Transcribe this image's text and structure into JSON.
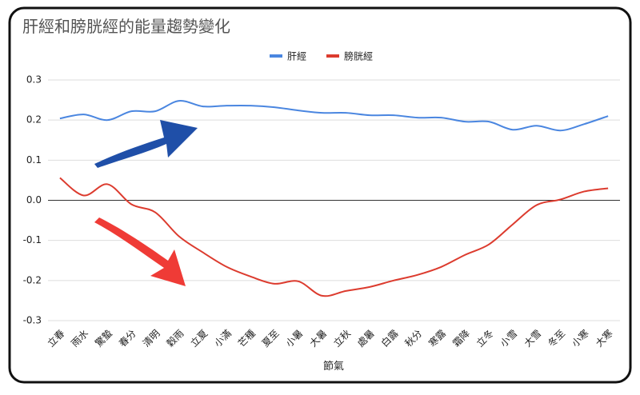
{
  "chart_data": {
    "type": "line",
    "title": "肝經和膀胱經的能量趨勢變化",
    "x_label": "節氣",
    "categories": [
      "立春",
      "雨水",
      "驚蟄",
      "春分",
      "清明",
      "穀雨",
      "立夏",
      "小滿",
      "芒種",
      "夏至",
      "小暑",
      "大暑",
      "立秋",
      "處暑",
      "白露",
      "秋分",
      "寒露",
      "霜降",
      "立冬",
      "小雪",
      "大雪",
      "冬至",
      "小寒",
      "大寒"
    ],
    "series": [
      {
        "name": "肝經",
        "color": "#4a86e0",
        "values": [
          0.204,
          0.214,
          0.2,
          0.222,
          0.222,
          0.248,
          0.234,
          0.236,
          0.236,
          0.232,
          0.224,
          0.218,
          0.218,
          0.212,
          0.212,
          0.206,
          0.206,
          0.196,
          0.196,
          0.176,
          0.186,
          0.174,
          0.19,
          0.21
        ]
      },
      {
        "name": "膀胱經",
        "color": "#dc3b2e",
        "values": [
          0.056,
          0.012,
          0.04,
          -0.01,
          -0.03,
          -0.09,
          -0.13,
          -0.166,
          -0.19,
          -0.208,
          -0.202,
          -0.238,
          -0.226,
          -0.216,
          -0.2,
          -0.186,
          -0.166,
          -0.136,
          -0.11,
          -0.06,
          -0.012,
          0.002,
          0.022,
          0.03
        ]
      }
    ],
    "ylim": [
      -0.3,
      0.3
    ],
    "yticks": [
      -0.3,
      -0.2,
      -0.1,
      {
        "value": 0,
        "label": "0.0"
      },
      0.1,
      0.2,
      0.3
    ],
    "grid": true,
    "legend": "top"
  }
}
